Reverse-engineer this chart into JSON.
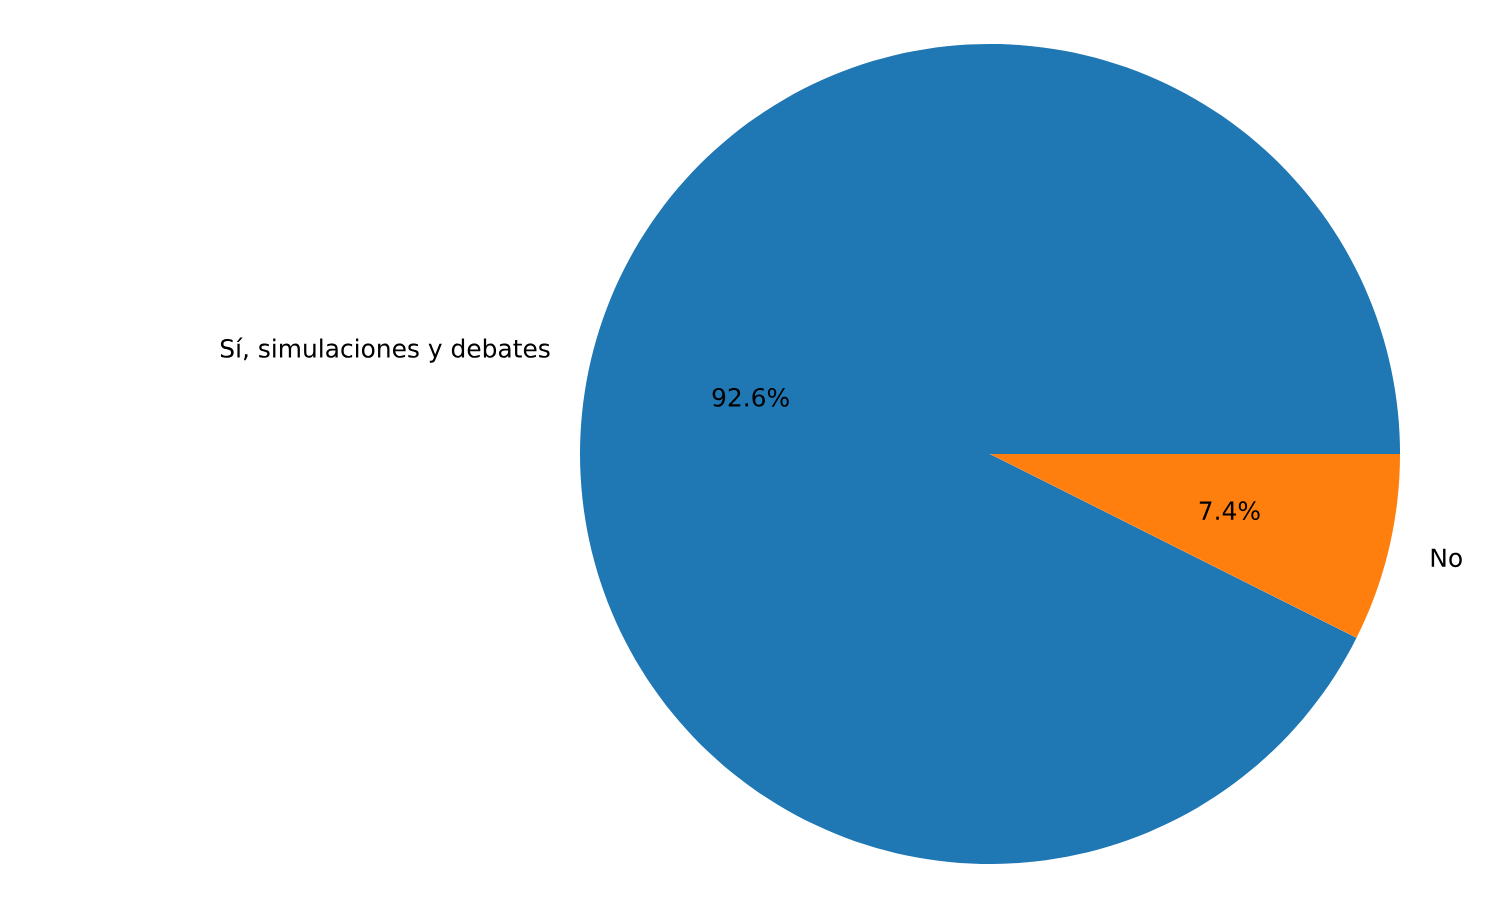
{
  "chart_data": {
    "type": "pie",
    "categories": [
      "Sí, simulaciones y debates",
      "No"
    ],
    "values": [
      92.6,
      7.4
    ],
    "colors": [
      "#1f77b4",
      "#ff7f0e"
    ],
    "value_labels": [
      "92.6%",
      "7.4%"
    ]
  }
}
